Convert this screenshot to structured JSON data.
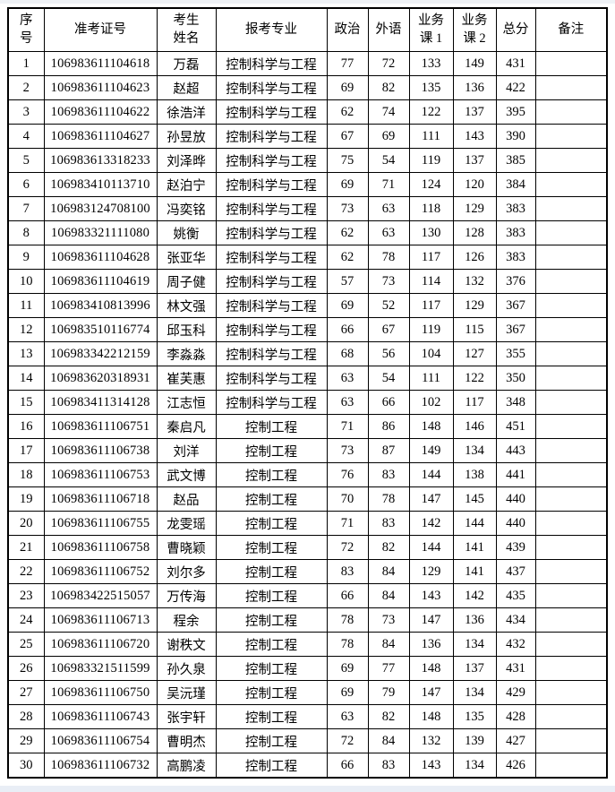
{
  "table": {
    "columns": [
      {
        "key": "no",
        "label": "序\n号"
      },
      {
        "key": "exam_id",
        "label": "准考证号"
      },
      {
        "key": "name",
        "label": "考生\n姓名"
      },
      {
        "key": "major",
        "label": "报考专业"
      },
      {
        "key": "politics",
        "label": "政治"
      },
      {
        "key": "foreign",
        "label": "外语"
      },
      {
        "key": "course1",
        "label": "业务\n课 1"
      },
      {
        "key": "course2",
        "label": "业务\n课 2"
      },
      {
        "key": "total",
        "label": "总分"
      },
      {
        "key": "remark",
        "label": "备注"
      }
    ],
    "rows": [
      {
        "no": "1",
        "exam_id": "106983611104618",
        "name": "万磊",
        "major": "控制科学与工程",
        "politics": "77",
        "foreign": "72",
        "course1": "133",
        "course2": "149",
        "total": "431",
        "remark": ""
      },
      {
        "no": "2",
        "exam_id": "106983611104623",
        "name": "赵超",
        "major": "控制科学与工程",
        "politics": "69",
        "foreign": "82",
        "course1": "135",
        "course2": "136",
        "total": "422",
        "remark": ""
      },
      {
        "no": "3",
        "exam_id": "106983611104622",
        "name": "徐浩洋",
        "major": "控制科学与工程",
        "politics": "62",
        "foreign": "74",
        "course1": "122",
        "course2": "137",
        "total": "395",
        "remark": ""
      },
      {
        "no": "4",
        "exam_id": "106983611104627",
        "name": "孙昱放",
        "major": "控制科学与工程",
        "politics": "67",
        "foreign": "69",
        "course1": "111",
        "course2": "143",
        "total": "390",
        "remark": ""
      },
      {
        "no": "5",
        "exam_id": "106983613318233",
        "name": "刘泽晔",
        "major": "控制科学与工程",
        "politics": "75",
        "foreign": "54",
        "course1": "119",
        "course2": "137",
        "total": "385",
        "remark": ""
      },
      {
        "no": "6",
        "exam_id": "106983410113710",
        "name": "赵泊宁",
        "major": "控制科学与工程",
        "politics": "69",
        "foreign": "71",
        "course1": "124",
        "course2": "120",
        "total": "384",
        "remark": ""
      },
      {
        "no": "7",
        "exam_id": "106983124708100",
        "name": "冯奕铭",
        "major": "控制科学与工程",
        "politics": "73",
        "foreign": "63",
        "course1": "118",
        "course2": "129",
        "total": "383",
        "remark": ""
      },
      {
        "no": "8",
        "exam_id": "106983321111080",
        "name": "姚衡",
        "major": "控制科学与工程",
        "politics": "62",
        "foreign": "63",
        "course1": "130",
        "course2": "128",
        "total": "383",
        "remark": ""
      },
      {
        "no": "9",
        "exam_id": "106983611104628",
        "name": "张亚华",
        "major": "控制科学与工程",
        "politics": "62",
        "foreign": "78",
        "course1": "117",
        "course2": "126",
        "total": "383",
        "remark": ""
      },
      {
        "no": "10",
        "exam_id": "106983611104619",
        "name": "周子健",
        "major": "控制科学与工程",
        "politics": "57",
        "foreign": "73",
        "course1": "114",
        "course2": "132",
        "total": "376",
        "remark": ""
      },
      {
        "no": "11",
        "exam_id": "106983410813996",
        "name": "林文强",
        "major": "控制科学与工程",
        "politics": "69",
        "foreign": "52",
        "course1": "117",
        "course2": "129",
        "total": "367",
        "remark": ""
      },
      {
        "no": "12",
        "exam_id": "106983510116774",
        "name": "邱玉科",
        "major": "控制科学与工程",
        "politics": "66",
        "foreign": "67",
        "course1": "119",
        "course2": "115",
        "total": "367",
        "remark": ""
      },
      {
        "no": "13",
        "exam_id": "106983342212159",
        "name": "李淼淼",
        "major": "控制科学与工程",
        "politics": "68",
        "foreign": "56",
        "course1": "104",
        "course2": "127",
        "total": "355",
        "remark": ""
      },
      {
        "no": "14",
        "exam_id": "106983620318931",
        "name": "崔芙惠",
        "major": "控制科学与工程",
        "politics": "63",
        "foreign": "54",
        "course1": "111",
        "course2": "122",
        "total": "350",
        "remark": ""
      },
      {
        "no": "15",
        "exam_id": "106983411314128",
        "name": "江志恒",
        "major": "控制科学与工程",
        "politics": "63",
        "foreign": "66",
        "course1": "102",
        "course2": "117",
        "total": "348",
        "remark": ""
      },
      {
        "no": "16",
        "exam_id": "106983611106751",
        "name": "秦启凡",
        "major": "控制工程",
        "politics": "71",
        "foreign": "86",
        "course1": "148",
        "course2": "146",
        "total": "451",
        "remark": ""
      },
      {
        "no": "17",
        "exam_id": "106983611106738",
        "name": "刘洋",
        "major": "控制工程",
        "politics": "73",
        "foreign": "87",
        "course1": "149",
        "course2": "134",
        "total": "443",
        "remark": ""
      },
      {
        "no": "18",
        "exam_id": "106983611106753",
        "name": "武文博",
        "major": "控制工程",
        "politics": "76",
        "foreign": "83",
        "course1": "144",
        "course2": "138",
        "total": "441",
        "remark": ""
      },
      {
        "no": "19",
        "exam_id": "106983611106718",
        "name": "赵品",
        "major": "控制工程",
        "politics": "70",
        "foreign": "78",
        "course1": "147",
        "course2": "145",
        "total": "440",
        "remark": ""
      },
      {
        "no": "20",
        "exam_id": "106983611106755",
        "name": "龙雯瑶",
        "major": "控制工程",
        "politics": "71",
        "foreign": "83",
        "course1": "142",
        "course2": "144",
        "total": "440",
        "remark": ""
      },
      {
        "no": "21",
        "exam_id": "106983611106758",
        "name": "曹晓颖",
        "major": "控制工程",
        "politics": "72",
        "foreign": "82",
        "course1": "144",
        "course2": "141",
        "total": "439",
        "remark": ""
      },
      {
        "no": "22",
        "exam_id": "106983611106752",
        "name": "刘尔多",
        "major": "控制工程",
        "politics": "83",
        "foreign": "84",
        "course1": "129",
        "course2": "141",
        "total": "437",
        "remark": ""
      },
      {
        "no": "23",
        "exam_id": "106983422515057",
        "name": "万传海",
        "major": "控制工程",
        "politics": "66",
        "foreign": "84",
        "course1": "143",
        "course2": "142",
        "total": "435",
        "remark": ""
      },
      {
        "no": "24",
        "exam_id": "106983611106713",
        "name": "程余",
        "major": "控制工程",
        "politics": "78",
        "foreign": "73",
        "course1": "147",
        "course2": "136",
        "total": "434",
        "remark": ""
      },
      {
        "no": "25",
        "exam_id": "106983611106720",
        "name": "谢秩文",
        "major": "控制工程",
        "politics": "78",
        "foreign": "84",
        "course1": "136",
        "course2": "134",
        "total": "432",
        "remark": ""
      },
      {
        "no": "26",
        "exam_id": "106983321511599",
        "name": "孙久泉",
        "major": "控制工程",
        "politics": "69",
        "foreign": "77",
        "course1": "148",
        "course2": "137",
        "total": "431",
        "remark": ""
      },
      {
        "no": "27",
        "exam_id": "106983611106750",
        "name": "吴沅瑾",
        "major": "控制工程",
        "politics": "69",
        "foreign": "79",
        "course1": "147",
        "course2": "134",
        "total": "429",
        "remark": ""
      },
      {
        "no": "28",
        "exam_id": "106983611106743",
        "name": "张宇轩",
        "major": "控制工程",
        "politics": "63",
        "foreign": "82",
        "course1": "148",
        "course2": "135",
        "total": "428",
        "remark": ""
      },
      {
        "no": "29",
        "exam_id": "106983611106754",
        "name": "曹明杰",
        "major": "控制工程",
        "politics": "72",
        "foreign": "84",
        "course1": "132",
        "course2": "139",
        "total": "427",
        "remark": ""
      },
      {
        "no": "30",
        "exam_id": "106983611106732",
        "name": "高鹏凌",
        "major": "控制工程",
        "politics": "66",
        "foreign": "83",
        "course1": "143",
        "course2": "134",
        "total": "426",
        "remark": ""
      }
    ]
  }
}
